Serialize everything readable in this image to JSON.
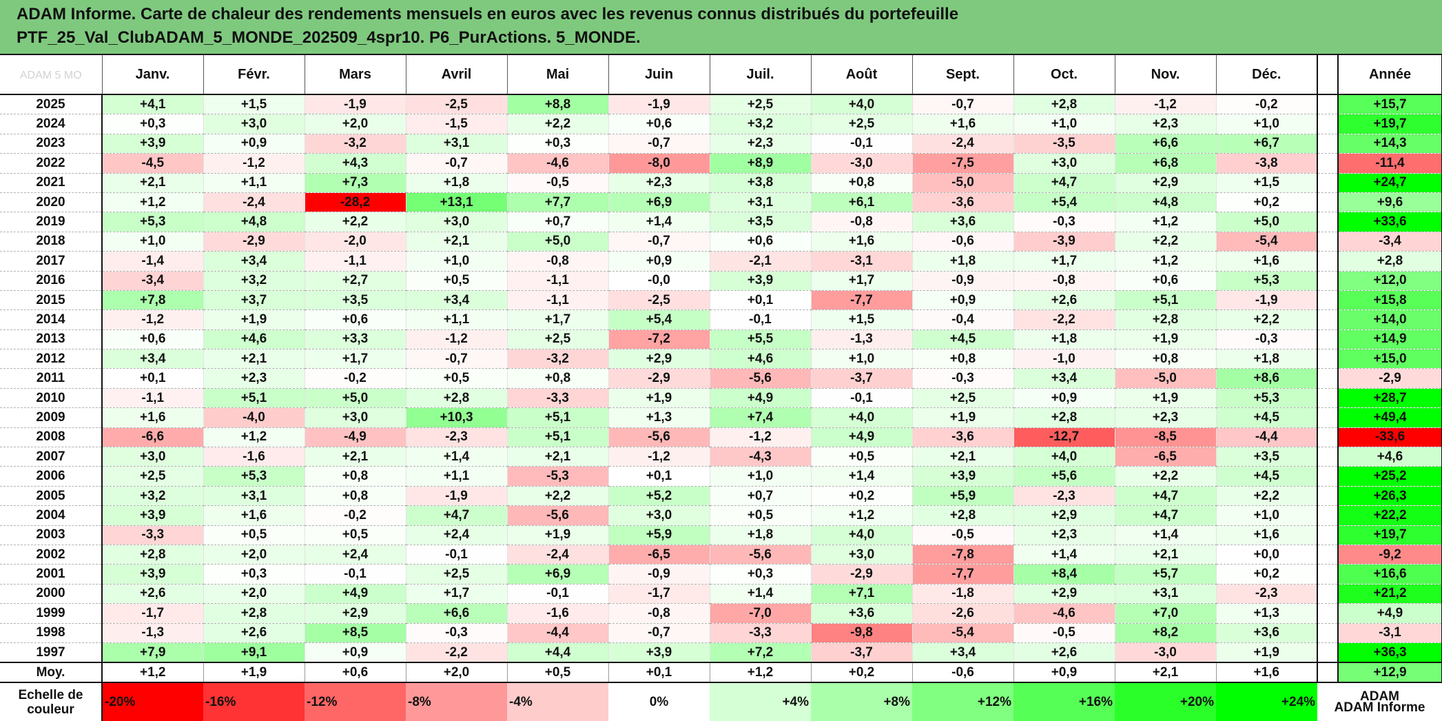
{
  "title": {
    "line1": "ADAM Informe. Carte de chaleur des rendements mensuels en euros avec les revenus connus distribués du portefeuille",
    "line2": "PTF_25_Val_ClubADAM_5_MONDE_202509_4spr10. P6_PurActions. 5_MONDE."
  },
  "watermark": "ADAM 5 MO",
  "colors": {
    "header_band": "#7fc97f",
    "positive_max": "#00ff00",
    "negative_max": "#ff0000",
    "neutral": "#ffffff"
  },
  "chart_data": {
    "type": "heatmap",
    "months": [
      "Janv.",
      "Févr.",
      "Mars",
      "Avril",
      "Mai",
      "Juin",
      "Juil.",
      "Août",
      "Sept.",
      "Oct.",
      "Nov.",
      "Déc."
    ],
    "year_header": "Année",
    "rows": [
      {
        "year": "2025",
        "values": [
          "+4,1",
          "+1,5",
          "-1,9",
          "-2,5",
          "+8,8",
          "-1,9",
          "+2,5",
          "+4,0",
          "-0,7",
          "+2,8",
          "-1,2",
          "-0,2"
        ],
        "annual": "+15,7"
      },
      {
        "year": "2024",
        "values": [
          "+0,3",
          "+3,0",
          "+2,0",
          "-1,5",
          "+2,2",
          "+0,6",
          "+3,2",
          "+2,5",
          "+1,6",
          "+1,0",
          "+2,3",
          "+1,0"
        ],
        "annual": "+19,7"
      },
      {
        "year": "2023",
        "values": [
          "+3,9",
          "+0,9",
          "-3,2",
          "+3,1",
          "+0,3",
          "-0,7",
          "+2,3",
          "-0,1",
          "-2,4",
          "-3,5",
          "+6,6",
          "+6,7"
        ],
        "annual": "+14,3"
      },
      {
        "year": "2022",
        "values": [
          "-4,5",
          "-1,2",
          "+4,3",
          "-0,7",
          "-4,6",
          "-8,0",
          "+8,9",
          "-3,0",
          "-7,5",
          "+3,0",
          "+6,8",
          "-3,8"
        ],
        "annual": "-11,4"
      },
      {
        "year": "2021",
        "values": [
          "+2,1",
          "+1,1",
          "+7,3",
          "+1,8",
          "-0,5",
          "+2,3",
          "+3,8",
          "+0,8",
          "-5,0",
          "+4,7",
          "+2,9",
          "+1,5"
        ],
        "annual": "+24,7"
      },
      {
        "year": "2020",
        "values": [
          "+1,2",
          "-2,4",
          "-28,2",
          "+13,1",
          "+7,7",
          "+6,9",
          "+3,1",
          "+6,1",
          "-3,6",
          "+5,4",
          "+4,8",
          "+0,2"
        ],
        "annual": "+9,6"
      },
      {
        "year": "2019",
        "values": [
          "+5,3",
          "+4,8",
          "+2,2",
          "+3,0",
          "+0,7",
          "+1,4",
          "+3,5",
          "-0,8",
          "+3,6",
          "-0,3",
          "+1,2",
          "+5,0"
        ],
        "annual": "+33,6"
      },
      {
        "year": "2018",
        "values": [
          "+1,0",
          "-2,9",
          "-2,0",
          "+2,1",
          "+5,0",
          "-0,7",
          "+0,6",
          "+1,6",
          "-0,6",
          "-3,9",
          "+2,2",
          "-5,4"
        ],
        "annual": "-3,4"
      },
      {
        "year": "2017",
        "values": [
          "-1,4",
          "+3,4",
          "-1,1",
          "+1,0",
          "-0,8",
          "+0,9",
          "-2,1",
          "-3,1",
          "+1,8",
          "+1,7",
          "+1,2",
          "+1,6"
        ],
        "annual": "+2,8"
      },
      {
        "year": "2016",
        "values": [
          "-3,4",
          "+3,2",
          "+2,7",
          "+0,5",
          "-1,1",
          "-0,0",
          "+3,9",
          "+1,7",
          "-0,9",
          "-0,8",
          "+0,6",
          "+5,3"
        ],
        "annual": "+12,0"
      },
      {
        "year": "2015",
        "values": [
          "+7,8",
          "+3,7",
          "+3,5",
          "+3,4",
          "-1,1",
          "-2,5",
          "+0,1",
          "-7,7",
          "+0,9",
          "+2,6",
          "+5,1",
          "-1,9"
        ],
        "annual": "+15,8"
      },
      {
        "year": "2014",
        "values": [
          "-1,2",
          "+1,9",
          "+0,6",
          "+1,1",
          "+1,7",
          "+5,4",
          "-0,1",
          "+1,5",
          "-0,4",
          "-2,2",
          "+2,8",
          "+2,2"
        ],
        "annual": "+14,0"
      },
      {
        "year": "2013",
        "values": [
          "+0,6",
          "+4,6",
          "+3,3",
          "-1,2",
          "+2,5",
          "-7,2",
          "+5,5",
          "-1,3",
          "+4,5",
          "+1,8",
          "+1,9",
          "-0,3"
        ],
        "annual": "+14,9"
      },
      {
        "year": "2012",
        "values": [
          "+3,4",
          "+2,1",
          "+1,7",
          "-0,7",
          "-3,2",
          "+2,9",
          "+4,6",
          "+1,0",
          "+0,8",
          "-1,0",
          "+0,8",
          "+1,8"
        ],
        "annual": "+15,0"
      },
      {
        "year": "2011",
        "values": [
          "+0,1",
          "+2,3",
          "-0,2",
          "+0,5",
          "+0,8",
          "-2,9",
          "-5,6",
          "-3,7",
          "-0,3",
          "+3,4",
          "-5,0",
          "+8,6"
        ],
        "annual": "-2,9"
      },
      {
        "year": "2010",
        "values": [
          "-1,1",
          "+5,1",
          "+5,0",
          "+2,8",
          "-3,3",
          "+1,9",
          "+4,9",
          "-0,1",
          "+2,5",
          "+0,9",
          "+1,9",
          "+5,3"
        ],
        "annual": "+28,7"
      },
      {
        "year": "2009",
        "values": [
          "+1,6",
          "-4,0",
          "+3,0",
          "+10,3",
          "+5,1",
          "+1,3",
          "+7,4",
          "+4,0",
          "+1,9",
          "+2,8",
          "+2,3",
          "+4,5"
        ],
        "annual": "+49,4"
      },
      {
        "year": "2008",
        "values": [
          "-6,6",
          "+1,2",
          "-4,9",
          "-2,3",
          "+5,1",
          "-5,6",
          "-1,2",
          "+4,9",
          "-3,6",
          "-12,7",
          "-8,5",
          "-4,4"
        ],
        "annual": "-33,6"
      },
      {
        "year": "2007",
        "values": [
          "+3,0",
          "-1,6",
          "+2,1",
          "+1,4",
          "+2,1",
          "-1,2",
          "-4,3",
          "+0,5",
          "+2,1",
          "+4,0",
          "-6,5",
          "+3,5"
        ],
        "annual": "+4,6"
      },
      {
        "year": "2006",
        "values": [
          "+2,5",
          "+5,3",
          "+0,8",
          "+1,1",
          "-5,3",
          "+0,1",
          "+1,0",
          "+1,4",
          "+3,9",
          "+5,6",
          "+2,2",
          "+4,5"
        ],
        "annual": "+25,2"
      },
      {
        "year": "2005",
        "values": [
          "+3,2",
          "+3,1",
          "+0,8",
          "-1,9",
          "+2,2",
          "+5,2",
          "+0,7",
          "+0,2",
          "+5,9",
          "-2,3",
          "+4,7",
          "+2,2"
        ],
        "annual": "+26,3"
      },
      {
        "year": "2004",
        "values": [
          "+3,9",
          "+1,6",
          "-0,2",
          "+4,7",
          "-5,6",
          "+3,0",
          "+0,5",
          "+1,2",
          "+2,8",
          "+2,9",
          "+4,7",
          "+1,0"
        ],
        "annual": "+22,2"
      },
      {
        "year": "2003",
        "values": [
          "-3,3",
          "+0,5",
          "+0,5",
          "+2,4",
          "+1,9",
          "+5,9",
          "+1,8",
          "+4,0",
          "-0,5",
          "+2,3",
          "+1,4",
          "+1,6"
        ],
        "annual": "+19,7"
      },
      {
        "year": "2002",
        "values": [
          "+2,8",
          "+2,0",
          "+2,4",
          "-0,1",
          "-2,4",
          "-6,5",
          "-5,6",
          "+3,0",
          "-7,8",
          "+1,4",
          "+2,1",
          "+0,0"
        ],
        "annual": "-9,2"
      },
      {
        "year": "2001",
        "values": [
          "+3,9",
          "+0,3",
          "-0,1",
          "+2,5",
          "+6,9",
          "-0,9",
          "+0,3",
          "-2,9",
          "-7,7",
          "+8,4",
          "+5,7",
          "+0,2"
        ],
        "annual": "+16,6"
      },
      {
        "year": "2000",
        "values": [
          "+2,6",
          "+2,0",
          "+4,9",
          "+1,7",
          "-0,1",
          "-1,7",
          "+1,4",
          "+7,1",
          "-1,8",
          "+2,9",
          "+3,1",
          "-2,3"
        ],
        "annual": "+21,2"
      },
      {
        "year": "1999",
        "values": [
          "-1,7",
          "+2,8",
          "+2,9",
          "+6,6",
          "-1,6",
          "-0,8",
          "-7,0",
          "+3,6",
          "-2,6",
          "-4,6",
          "+7,0",
          "+1,3"
        ],
        "annual": "+4,9"
      },
      {
        "year": "1998",
        "values": [
          "-1,3",
          "+2,6",
          "+8,5",
          "-0,3",
          "-4,4",
          "-0,7",
          "-3,3",
          "-9,8",
          "-5,4",
          "-0,5",
          "+8,2",
          "+3,6"
        ],
        "annual": "-3,1"
      },
      {
        "year": "1997",
        "values": [
          "+7,9",
          "+9,1",
          "+0,9",
          "-2,2",
          "+4,4",
          "+3,9",
          "+7,2",
          "-3,7",
          "+3,4",
          "+2,6",
          "-3,0",
          "+1,9"
        ],
        "annual": "+36,3"
      }
    ],
    "average": {
      "label": "Moy.",
      "values": [
        "+1,2",
        "+1,9",
        "+0,6",
        "+2,0",
        "+0,5",
        "+0,1",
        "+1,2",
        "+0,2",
        "-0,6",
        "+0,9",
        "+2,1",
        "+1,6"
      ],
      "annual": "+12,9"
    },
    "scale": {
      "label_line1": "Echelle de",
      "label_line2": "couleur",
      "steps": [
        {
          "label": "-20%",
          "value": -20
        },
        {
          "label": "-16%",
          "value": -16
        },
        {
          "label": "-12%",
          "value": -12
        },
        {
          "label": "-8%",
          "value": -8
        },
        {
          "label": "-4%",
          "value": -4
        },
        {
          "label": "0%",
          "value": 0
        },
        {
          "label": "+4%",
          "value": 4
        },
        {
          "label": "+8%",
          "value": 8
        },
        {
          "label": "+12%",
          "value": 12
        },
        {
          "label": "+16%",
          "value": 16
        },
        {
          "label": "+20%",
          "value": 20
        },
        {
          "label": "+24%",
          "value": 24
        }
      ],
      "note_line1": "ADAM",
      "note_line2": "ADAM Informe"
    }
  }
}
